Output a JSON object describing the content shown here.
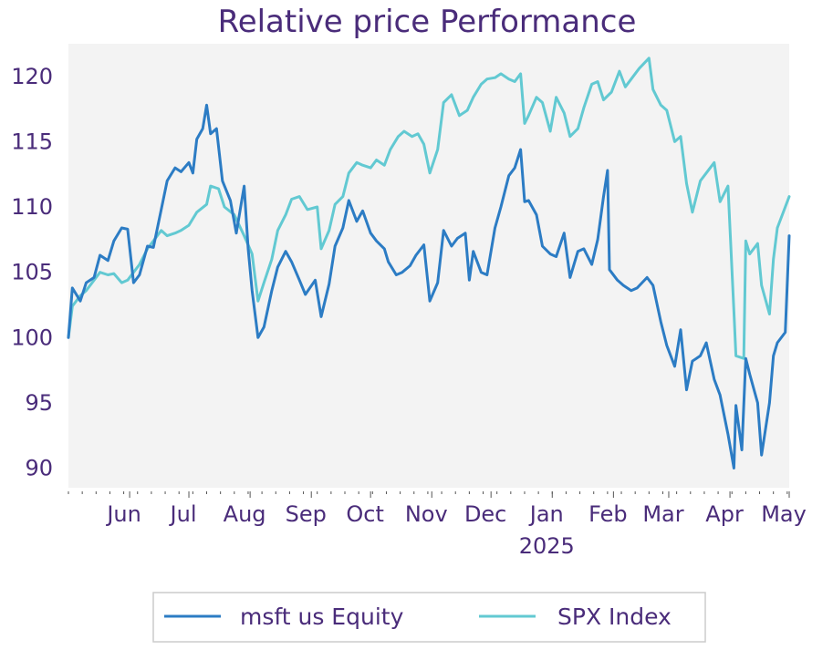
{
  "chart_data": {
    "type": "line",
    "title": "Relative price Performance",
    "xlabel": "",
    "ylabel": "",
    "x_start": "2024-05-01",
    "x_end": "2025-05-01",
    "x_ticks": [
      {
        "date": "2024-06-01",
        "label": "Jun"
      },
      {
        "date": "2024-07-01",
        "label": "Jul"
      },
      {
        "date": "2024-08-01",
        "label": "Aug"
      },
      {
        "date": "2024-09-01",
        "label": "Sep"
      },
      {
        "date": "2024-10-01",
        "label": "Oct"
      },
      {
        "date": "2024-11-01",
        "label": "Nov"
      },
      {
        "date": "2024-12-01",
        "label": "Dec"
      },
      {
        "date": "2025-01-01",
        "label": "Jan"
      },
      {
        "date": "2025-02-01",
        "label": "Feb"
      },
      {
        "date": "2025-03-01",
        "label": "Mar"
      },
      {
        "date": "2025-04-01",
        "label": "Apr"
      },
      {
        "date": "2025-05-01",
        "label": "May"
      }
    ],
    "x_sublabel": "2025",
    "ylim": [
      88.5,
      122.5
    ],
    "y_ticks": [
      90,
      95,
      100,
      105,
      110,
      115,
      120
    ],
    "grid": false,
    "plot_background": "#f3f3f3",
    "legend_placement": "bottom-center",
    "series": [
      {
        "name": "msft us Equity",
        "color": "#2c7cc4",
        "points": [
          [
            "2024-05-01",
            100.0
          ],
          [
            "2024-05-03",
            103.8
          ],
          [
            "2024-05-07",
            102.8
          ],
          [
            "2024-05-10",
            104.2
          ],
          [
            "2024-05-14",
            104.6
          ],
          [
            "2024-05-17",
            106.3
          ],
          [
            "2024-05-21",
            105.9
          ],
          [
            "2024-05-24",
            107.4
          ],
          [
            "2024-05-28",
            108.4
          ],
          [
            "2024-05-31",
            108.3
          ],
          [
            "2024-06-03",
            104.2
          ],
          [
            "2024-06-06",
            104.8
          ],
          [
            "2024-06-10",
            107.0
          ],
          [
            "2024-06-13",
            106.9
          ],
          [
            "2024-06-17",
            109.8
          ],
          [
            "2024-06-20",
            112.0
          ],
          [
            "2024-06-24",
            113.0
          ],
          [
            "2024-06-27",
            112.7
          ],
          [
            "2024-07-01",
            113.4
          ],
          [
            "2024-07-03",
            112.6
          ],
          [
            "2024-07-05",
            115.2
          ],
          [
            "2024-07-08",
            116.0
          ],
          [
            "2024-07-10",
            117.8
          ],
          [
            "2024-07-12",
            115.6
          ],
          [
            "2024-07-15",
            116.0
          ],
          [
            "2024-07-18",
            112.0
          ],
          [
            "2024-07-22",
            110.5
          ],
          [
            "2024-07-25",
            108.0
          ],
          [
            "2024-07-29",
            111.6
          ],
          [
            "2024-07-31",
            106.8
          ],
          [
            "2024-08-02",
            103.6
          ],
          [
            "2024-08-05",
            100.0
          ],
          [
            "2024-08-08",
            100.8
          ],
          [
            "2024-08-12",
            103.6
          ],
          [
            "2024-08-15",
            105.4
          ],
          [
            "2024-08-19",
            106.6
          ],
          [
            "2024-08-22",
            105.8
          ],
          [
            "2024-08-26",
            104.4
          ],
          [
            "2024-08-29",
            103.3
          ],
          [
            "2024-09-03",
            104.4
          ],
          [
            "2024-09-06",
            101.6
          ],
          [
            "2024-09-10",
            104.1
          ],
          [
            "2024-09-13",
            107.0
          ],
          [
            "2024-09-17",
            108.4
          ],
          [
            "2024-09-20",
            110.5
          ],
          [
            "2024-09-24",
            108.9
          ],
          [
            "2024-09-27",
            109.7
          ],
          [
            "2024-10-01",
            108.0
          ],
          [
            "2024-10-04",
            107.4
          ],
          [
            "2024-10-08",
            106.8
          ],
          [
            "2024-10-10",
            105.8
          ],
          [
            "2024-10-14",
            104.8
          ],
          [
            "2024-10-17",
            105.0
          ],
          [
            "2024-10-21",
            105.5
          ],
          [
            "2024-10-24",
            106.3
          ],
          [
            "2024-10-28",
            107.1
          ],
          [
            "2024-10-31",
            102.8
          ],
          [
            "2024-11-04",
            104.2
          ],
          [
            "2024-11-07",
            108.2
          ],
          [
            "2024-11-11",
            107.0
          ],
          [
            "2024-11-14",
            107.6
          ],
          [
            "2024-11-18",
            108.0
          ],
          [
            "2024-11-20",
            104.4
          ],
          [
            "2024-11-22",
            106.6
          ],
          [
            "2024-11-26",
            105.0
          ],
          [
            "2024-11-29",
            104.8
          ],
          [
            "2024-12-03",
            108.4
          ],
          [
            "2024-12-06",
            110.0
          ],
          [
            "2024-12-10",
            112.4
          ],
          [
            "2024-12-13",
            113.0
          ],
          [
            "2024-12-16",
            114.4
          ],
          [
            "2024-12-18",
            110.4
          ],
          [
            "2024-12-20",
            110.5
          ],
          [
            "2024-12-24",
            109.4
          ],
          [
            "2024-12-27",
            107.0
          ],
          [
            "2024-12-31",
            106.4
          ],
          [
            "2025-01-03",
            106.2
          ],
          [
            "2025-01-07",
            108.0
          ],
          [
            "2025-01-10",
            104.6
          ],
          [
            "2025-01-14",
            106.6
          ],
          [
            "2025-01-17",
            106.8
          ],
          [
            "2025-01-21",
            105.6
          ],
          [
            "2025-01-24",
            107.5
          ],
          [
            "2025-01-27",
            110.8
          ],
          [
            "2025-01-29",
            112.8
          ],
          [
            "2025-01-30",
            105.2
          ],
          [
            "2025-02-03",
            104.4
          ],
          [
            "2025-02-06",
            104.0
          ],
          [
            "2025-02-10",
            103.6
          ],
          [
            "2025-02-13",
            103.8
          ],
          [
            "2025-02-18",
            104.6
          ],
          [
            "2025-02-21",
            104.0
          ],
          [
            "2025-02-25",
            101.2
          ],
          [
            "2025-02-28",
            99.4
          ],
          [
            "2025-03-04",
            97.8
          ],
          [
            "2025-03-07",
            100.6
          ],
          [
            "2025-03-10",
            96.0
          ],
          [
            "2025-03-13",
            98.2
          ],
          [
            "2025-03-17",
            98.6
          ],
          [
            "2025-03-20",
            99.6
          ],
          [
            "2025-03-24",
            96.8
          ],
          [
            "2025-03-27",
            95.6
          ],
          [
            "2025-03-31",
            92.6
          ],
          [
            "2025-04-03",
            90.0
          ],
          [
            "2025-04-04",
            94.8
          ],
          [
            "2025-04-07",
            91.4
          ],
          [
            "2025-04-09",
            98.4
          ],
          [
            "2025-04-11",
            97.2
          ],
          [
            "2025-04-15",
            95.0
          ],
          [
            "2025-04-17",
            91.0
          ],
          [
            "2025-04-21",
            95.0
          ],
          [
            "2025-04-23",
            98.6
          ],
          [
            "2025-04-25",
            99.6
          ],
          [
            "2025-04-29",
            100.4
          ],
          [
            "2025-05-01",
            107.8
          ]
        ]
      },
      {
        "name": "SPX Index",
        "color": "#62c9d2",
        "points": [
          [
            "2024-05-01",
            100.0
          ],
          [
            "2024-05-03",
            102.4
          ],
          [
            "2024-05-07",
            103.2
          ],
          [
            "2024-05-10",
            103.6
          ],
          [
            "2024-05-14",
            104.4
          ],
          [
            "2024-05-17",
            105.0
          ],
          [
            "2024-05-21",
            104.8
          ],
          [
            "2024-05-24",
            104.9
          ],
          [
            "2024-05-28",
            104.2
          ],
          [
            "2024-05-31",
            104.4
          ],
          [
            "2024-06-03",
            105.0
          ],
          [
            "2024-06-06",
            105.6
          ],
          [
            "2024-06-10",
            106.8
          ],
          [
            "2024-06-13",
            107.4
          ],
          [
            "2024-06-17",
            108.2
          ],
          [
            "2024-06-20",
            107.8
          ],
          [
            "2024-06-24",
            108.0
          ],
          [
            "2024-06-27",
            108.2
          ],
          [
            "2024-07-01",
            108.6
          ],
          [
            "2024-07-05",
            109.6
          ],
          [
            "2024-07-10",
            110.2
          ],
          [
            "2024-07-12",
            111.6
          ],
          [
            "2024-07-16",
            111.4
          ],
          [
            "2024-07-19",
            110.0
          ],
          [
            "2024-07-24",
            109.4
          ],
          [
            "2024-07-29",
            107.8
          ],
          [
            "2024-08-02",
            106.4
          ],
          [
            "2024-08-05",
            102.8
          ],
          [
            "2024-08-08",
            104.2
          ],
          [
            "2024-08-12",
            106.0
          ],
          [
            "2024-08-15",
            108.2
          ],
          [
            "2024-08-19",
            109.4
          ],
          [
            "2024-08-22",
            110.6
          ],
          [
            "2024-08-26",
            110.8
          ],
          [
            "2024-08-30",
            109.8
          ],
          [
            "2024-09-04",
            110.0
          ],
          [
            "2024-09-06",
            106.8
          ],
          [
            "2024-09-10",
            108.2
          ],
          [
            "2024-09-13",
            110.2
          ],
          [
            "2024-09-17",
            110.8
          ],
          [
            "2024-09-20",
            112.6
          ],
          [
            "2024-09-24",
            113.4
          ],
          [
            "2024-09-27",
            113.2
          ],
          [
            "2024-10-01",
            113.0
          ],
          [
            "2024-10-04",
            113.6
          ],
          [
            "2024-10-08",
            113.2
          ],
          [
            "2024-10-11",
            114.4
          ],
          [
            "2024-10-15",
            115.4
          ],
          [
            "2024-10-18",
            115.8
          ],
          [
            "2024-10-22",
            115.4
          ],
          [
            "2024-10-25",
            115.6
          ],
          [
            "2024-10-28",
            114.8
          ],
          [
            "2024-10-31",
            112.6
          ],
          [
            "2024-11-04",
            114.4
          ],
          [
            "2024-11-07",
            118.0
          ],
          [
            "2024-11-11",
            118.6
          ],
          [
            "2024-11-15",
            117.0
          ],
          [
            "2024-11-19",
            117.4
          ],
          [
            "2024-11-22",
            118.4
          ],
          [
            "2024-11-26",
            119.4
          ],
          [
            "2024-11-29",
            119.8
          ],
          [
            "2024-12-03",
            119.9
          ],
          [
            "2024-12-06",
            120.2
          ],
          [
            "2024-12-10",
            119.8
          ],
          [
            "2024-12-13",
            119.6
          ],
          [
            "2024-12-16",
            120.2
          ],
          [
            "2024-12-18",
            116.4
          ],
          [
            "2024-12-20",
            117.0
          ],
          [
            "2024-12-24",
            118.4
          ],
          [
            "2024-12-27",
            118.0
          ],
          [
            "2024-12-31",
            115.8
          ],
          [
            "2025-01-03",
            118.4
          ],
          [
            "2025-01-07",
            117.2
          ],
          [
            "2025-01-10",
            115.4
          ],
          [
            "2025-01-14",
            116.0
          ],
          [
            "2025-01-17",
            117.6
          ],
          [
            "2025-01-21",
            119.4
          ],
          [
            "2025-01-24",
            119.6
          ],
          [
            "2025-01-27",
            118.2
          ],
          [
            "2025-01-31",
            118.8
          ],
          [
            "2025-02-04",
            120.4
          ],
          [
            "2025-02-07",
            119.2
          ],
          [
            "2025-02-11",
            120.0
          ],
          [
            "2025-02-14",
            120.6
          ],
          [
            "2025-02-19",
            121.4
          ],
          [
            "2025-02-21",
            119.0
          ],
          [
            "2025-02-25",
            117.8
          ],
          [
            "2025-02-28",
            117.4
          ],
          [
            "2025-03-04",
            115.0
          ],
          [
            "2025-03-07",
            115.4
          ],
          [
            "2025-03-10",
            111.8
          ],
          [
            "2025-03-13",
            109.6
          ],
          [
            "2025-03-17",
            112.0
          ],
          [
            "2025-03-20",
            112.6
          ],
          [
            "2025-03-24",
            113.4
          ],
          [
            "2025-03-27",
            110.4
          ],
          [
            "2025-03-31",
            111.6
          ],
          [
            "2025-04-03",
            102.0
          ],
          [
            "2025-04-04",
            98.6
          ],
          [
            "2025-04-08",
            98.4
          ],
          [
            "2025-04-09",
            107.4
          ],
          [
            "2025-04-11",
            106.4
          ],
          [
            "2025-04-15",
            107.2
          ],
          [
            "2025-04-17",
            104.0
          ],
          [
            "2025-04-21",
            101.8
          ],
          [
            "2025-04-23",
            106.0
          ],
          [
            "2025-04-25",
            108.4
          ],
          [
            "2025-04-29",
            110.0
          ],
          [
            "2025-05-01",
            110.8
          ]
        ]
      }
    ]
  }
}
